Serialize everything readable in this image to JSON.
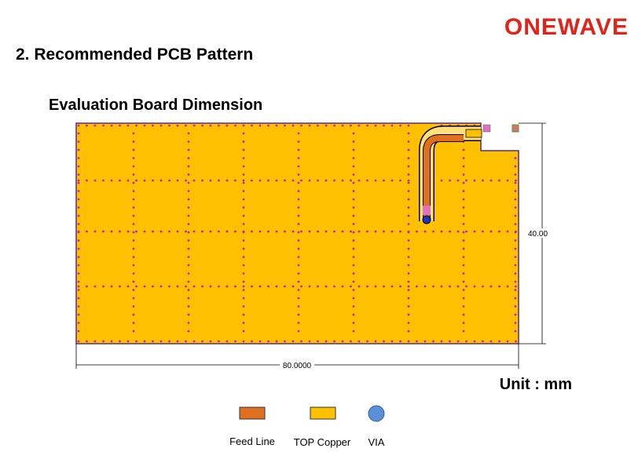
{
  "header": {
    "logo": "ONEWAVE",
    "section_title": "2. Recommended PCB Pattern"
  },
  "figure": {
    "title": "Evaluation Board Dimension",
    "height_label": "40.00",
    "width_label": "80.0000",
    "unit": "Unit : mm"
  },
  "legend": [
    {
      "label": "Feed Line"
    },
    {
      "label": "TOP Copper"
    },
    {
      "label": "VIA"
    }
  ]
}
